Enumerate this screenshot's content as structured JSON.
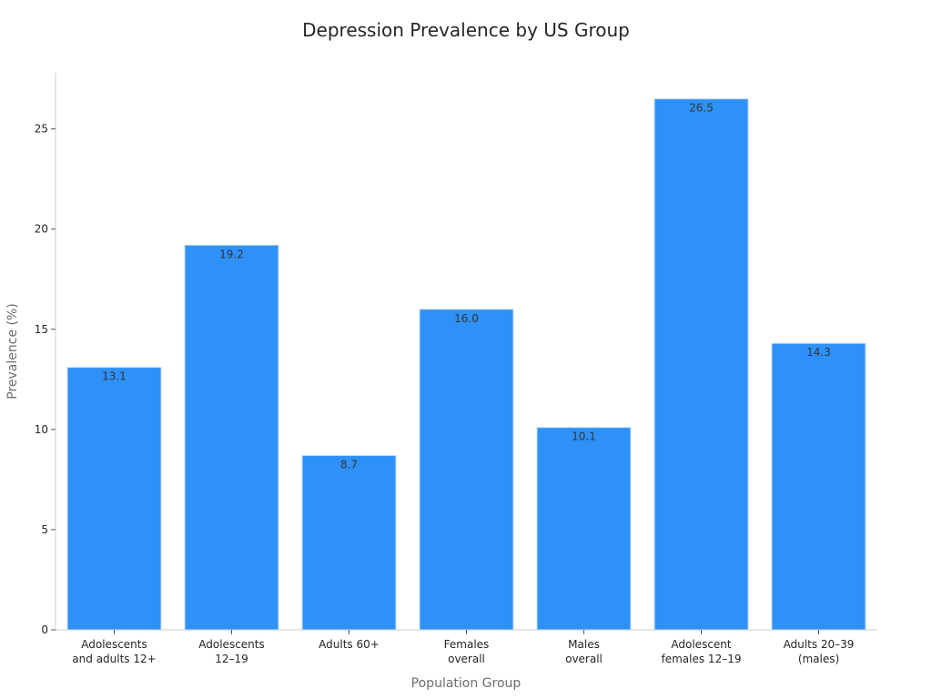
{
  "chart_data": {
    "type": "bar",
    "title": "Depression Prevalence by US Group",
    "xlabel": "Population Group",
    "ylabel": "Prevalence (%)",
    "categories": [
      [
        "Adolescents",
        "and adults 12+"
      ],
      [
        "Adolescents",
        "12–19"
      ],
      [
        "Adults 60+"
      ],
      [
        "Females",
        "overall"
      ],
      [
        "Males",
        "overall"
      ],
      [
        "Adolescent",
        "females 12–19"
      ],
      [
        "Adults 20–39",
        "(males)"
      ]
    ],
    "values": [
      13.1,
      19.2,
      8.7,
      16.0,
      10.1,
      26.5,
      14.3
    ],
    "value_labels": [
      "13.1",
      "19.2",
      "8.7",
      "16.0",
      "10.1",
      "26.5",
      "14.3"
    ],
    "yticks": [
      "0",
      "5",
      "10",
      "15",
      "20",
      "25"
    ],
    "ylim": [
      0,
      27.8
    ],
    "grid": false,
    "legend": "none",
    "colors": {
      "bar": "#2e91f8",
      "bar_edge": "#c9ddf5",
      "axis": "#cccccc"
    }
  }
}
